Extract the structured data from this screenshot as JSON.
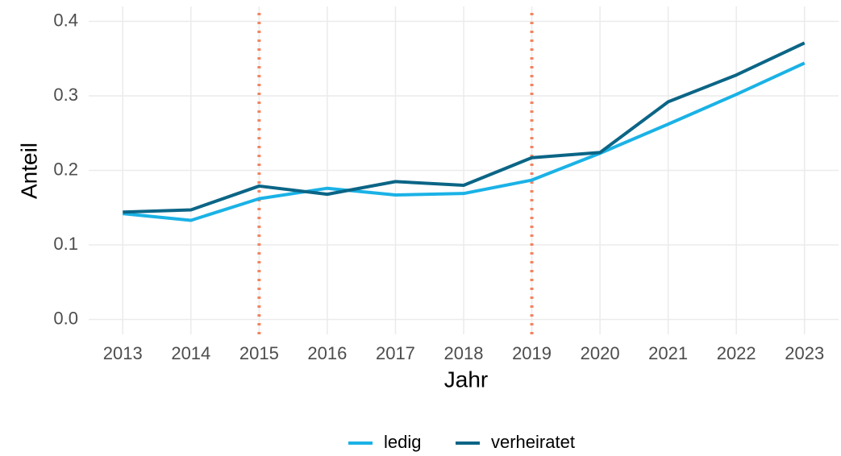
{
  "chart_data": {
    "type": "line",
    "x_label": "Jahr",
    "y_label": "Anteil",
    "x": [
      2013,
      2014,
      2015,
      2016,
      2017,
      2018,
      2019,
      2020,
      2021,
      2022,
      2023
    ],
    "series": [
      {
        "name": "ledig",
        "color": "#1ab2e6",
        "values": [
          0.142,
          0.133,
          0.162,
          0.176,
          0.167,
          0.169,
          0.187,
          0.223,
          0.262,
          0.302,
          0.344
        ]
      },
      {
        "name": "verheiratet",
        "color": "#0b6586",
        "values": [
          0.144,
          0.147,
          0.179,
          0.168,
          0.185,
          0.18,
          0.217,
          0.224,
          0.292,
          0.328,
          0.371
        ]
      }
    ],
    "vlines": [
      2015,
      2019
    ],
    "vline_color": "#f4845f",
    "xlim": [
      2012.5,
      2023.5
    ],
    "xticks": [
      2013,
      2014,
      2015,
      2016,
      2017,
      2018,
      2019,
      2020,
      2021,
      2022,
      2023
    ],
    "ylim": [
      -0.02,
      0.42
    ],
    "yticks": [
      {
        "value": 0,
        "label": "0.0"
      },
      0.1,
      0.2,
      0.3,
      0.4
    ],
    "grid": true,
    "legend": "bottom"
  }
}
